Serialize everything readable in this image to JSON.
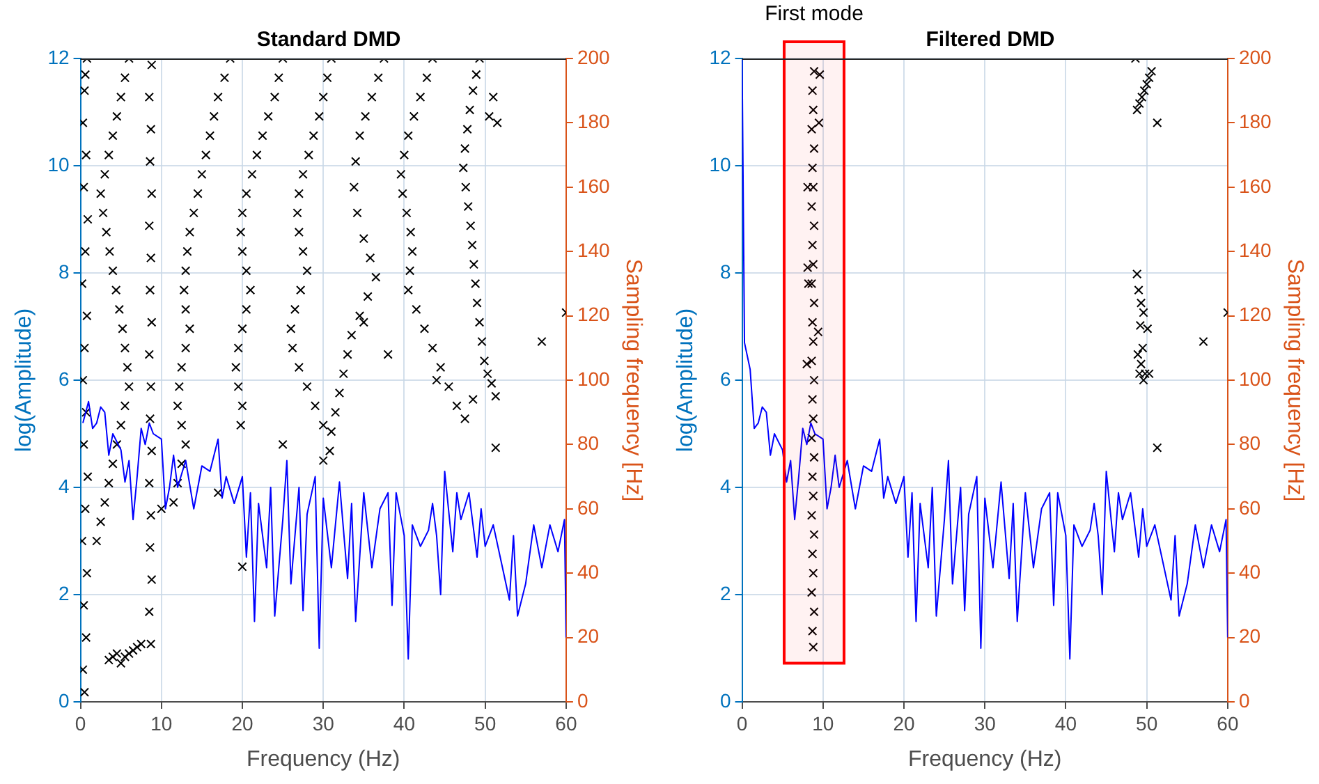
{
  "chart_data": [
    {
      "type": "line",
      "title": "Standard DMD",
      "xlabel": "Frequency (Hz)",
      "ylabel": "log(Amplitude)",
      "y2label": "Sampling frequency [Hz]",
      "xlim": [
        0,
        60
      ],
      "xticks": [
        0,
        10,
        20,
        30,
        40,
        50,
        60
      ],
      "ylim": [
        0,
        12
      ],
      "yticks": [
        0,
        2,
        4,
        6,
        8,
        10,
        12
      ],
      "y2lim": [
        0,
        200
      ],
      "y2ticks": [
        0,
        20,
        40,
        60,
        80,
        100,
        120,
        140,
        160,
        180,
        200
      ],
      "grid": true,
      "series": [
        {
          "color": "#0000ff",
          "x": [
            0.3,
            1,
            1.5,
            2,
            2.5,
            3,
            3.5,
            4,
            5,
            5.5,
            6,
            6.5,
            7,
            7.5,
            8,
            8.5,
            9,
            10,
            10.5,
            11,
            11.5,
            12,
            13,
            14,
            15,
            16,
            17,
            17.5,
            18,
            19,
            20,
            20.5,
            21,
            21.5,
            22,
            23,
            23.5,
            24,
            25,
            25.5,
            26,
            27,
            27.5,
            28,
            29,
            29.5,
            30,
            31,
            32,
            33,
            33.5,
            34,
            35,
            36,
            37,
            38,
            38.5,
            39,
            40,
            40.5,
            41,
            42,
            43,
            43.5,
            44,
            44.5,
            45,
            46,
            46.5,
            47,
            48,
            49,
            49.5,
            50,
            51,
            52,
            53,
            53.5,
            54,
            55,
            56,
            57,
            58,
            59,
            59.8,
            60
          ],
          "values": [
            5.2,
            5.6,
            5.1,
            5.2,
            5.5,
            5.4,
            4.6,
            5.0,
            4.7,
            4.1,
            4.5,
            3.4,
            4.2,
            5.1,
            4.8,
            5.2,
            5.0,
            4.9,
            3.6,
            4.0,
            4.6,
            4.0,
            4.5,
            3.6,
            4.4,
            4.3,
            4.9,
            3.8,
            4.2,
            3.7,
            4.2,
            2.7,
            3.9,
            1.5,
            3.7,
            2.5,
            4.0,
            1.6,
            3.4,
            4.5,
            2.2,
            4.0,
            1.7,
            3.5,
            4.2,
            1.0,
            3.8,
            2.5,
            4.1,
            2.3,
            3.7,
            1.5,
            3.9,
            2.5,
            3.6,
            3.9,
            1.8,
            3.9,
            3.1,
            0.8,
            3.3,
            2.9,
            3.2,
            3.7,
            3.1,
            2.0,
            4.3,
            2.8,
            3.9,
            3.4,
            3.9,
            2.7,
            3.6,
            2.9,
            3.3,
            2.6,
            1.9,
            3.1,
            1.6,
            2.2,
            3.3,
            2.5,
            3.3,
            2.8,
            3.4,
            1.2
          ]
        },
        {
          "type": "scatter",
          "axis": "y2",
          "marker": "cross",
          "color": "#000000",
          "x": [
            0.5,
            0.3,
            0.7,
            0.4,
            0.8,
            0.2,
            0.6,
            0.9,
            0.4,
            0.7,
            0.3,
            0.5,
            0.8,
            0.2,
            0.6,
            0.9,
            0.4,
            0.7,
            0.3,
            0.5,
            0.8,
            0.6,
            8.7,
            8.5,
            8.8,
            8.6,
            8.7,
            8.5,
            8.8,
            8.6,
            8.7,
            8.5,
            8.8,
            8.6,
            8.7,
            8.5,
            8.8,
            8.6,
            8.7,
            8.5,
            8.8,
            3.5,
            4,
            4.5,
            5,
            5.5,
            6,
            6.5,
            7,
            7.5,
            49.3,
            48.9,
            48.5,
            48.1,
            47.8,
            47.5,
            47.3,
            47.6,
            47.9,
            48.2,
            48.4,
            48.6,
            48.8,
            49,
            49.3,
            49.6,
            49.9,
            50.3,
            50.8,
            51.3,
            51,
            50.5,
            51.5,
            43.5,
            42.8,
            42,
            41.2,
            40.5,
            40,
            39.6,
            39.8,
            40.3,
            40.8,
            41,
            40.7,
            40.5,
            41.5,
            42.5,
            43.5,
            44.5,
            45.5,
            46.5,
            47.5,
            48.5,
            37.5,
            36.8,
            36,
            35.2,
            34.5,
            34,
            33.8,
            34.2,
            35,
            35.8,
            36.5,
            35.5,
            34.5,
            33.5,
            33,
            32.5,
            32,
            31.5,
            31,
            30.8,
            31,
            30.5,
            30,
            29.5,
            28.8,
            28.2,
            27.5,
            27,
            26.8,
            27,
            27.5,
            28,
            27.2,
            26.5,
            26,
            26.2,
            27,
            28,
            29,
            30,
            25,
            24.5,
            24,
            23.2,
            22.5,
            21.8,
            21.2,
            20.5,
            20,
            19.8,
            20,
            20.5,
            21,
            20.5,
            20,
            19.5,
            19.2,
            19.5,
            20,
            19.8,
            18.5,
            17.8,
            17,
            16.5,
            16,
            15.5,
            15,
            14.5,
            14,
            13.5,
            13.2,
            13,
            12.8,
            13,
            13.5,
            13,
            12.5,
            12.2,
            12,
            12.5,
            13,
            12.5,
            12,
            11.5,
            6,
            5.5,
            5,
            4.5,
            4,
            3.5,
            3,
            2.5,
            2.8,
            3.2,
            3.6,
            4,
            4.4,
            4.8,
            5.2,
            5.5,
            5.8,
            6,
            5.5,
            5,
            4.5,
            4,
            3.5,
            3,
            2.5,
            2,
            57,
            60,
            51.3,
            44,
            38,
            35,
            30,
            25,
            20,
            17,
            10
          ],
          "values": [
            3,
            10,
            20,
            30,
            40,
            50,
            60,
            70,
            80,
            90,
            100,
            110,
            120,
            130,
            140,
            150,
            160,
            170,
            180,
            190,
            200,
            195,
            18,
            28,
            38,
            48,
            58,
            68,
            78,
            88,
            98,
            108,
            118,
            128,
            138,
            148,
            158,
            168,
            178,
            188,
            198,
            13,
            14,
            15,
            12,
            14,
            15,
            16,
            17,
            18,
            200,
            195,
            190,
            184,
            178,
            172,
            166,
            160,
            154,
            148,
            142,
            136,
            130,
            124,
            118,
            112,
            106,
            102,
            99,
            95,
            188,
            182,
            180,
            200,
            194,
            188,
            182,
            176,
            170,
            164,
            158,
            152,
            146,
            140,
            134,
            128,
            122,
            116,
            110,
            104,
            98,
            92,
            88,
            94,
            200,
            194,
            188,
            182,
            176,
            168,
            160,
            152,
            144,
            138,
            132,
            126,
            120,
            114,
            108,
            102,
            96,
            90,
            84,
            78,
            200,
            194,
            188,
            182,
            176,
            170,
            164,
            158,
            152,
            146,
            140,
            134,
            128,
            122,
            116,
            110,
            104,
            98,
            92,
            86,
            200,
            194,
            188,
            182,
            176,
            170,
            164,
            158,
            152,
            146,
            140,
            134,
            128,
            122,
            116,
            110,
            104,
            98,
            92,
            86,
            200,
            194,
            188,
            182,
            176,
            170,
            164,
            158,
            152,
            146,
            140,
            134,
            128,
            122,
            116,
            110,
            104,
            98,
            92,
            86,
            80,
            74,
            68,
            62,
            200,
            194,
            188,
            182,
            176,
            170,
            164,
            158,
            152,
            146,
            140,
            134,
            128,
            122,
            116,
            110,
            104,
            98,
            92,
            86,
            80,
            74,
            68,
            62,
            56,
            50,
            112,
            121,
            79,
            100,
            108,
            118,
            75,
            80,
            42,
            65,
            60
          ]
        }
      ]
    },
    {
      "type": "line",
      "title": "Filtered DMD",
      "xlabel": "Frequency (Hz)",
      "ylabel": "log(Amplitude)",
      "y2label": "Sampling frequency [Hz]",
      "xlim": [
        0,
        60
      ],
      "xticks": [
        0,
        10,
        20,
        30,
        40,
        50,
        60
      ],
      "ylim": [
        0,
        12
      ],
      "yticks": [
        0,
        2,
        4,
        6,
        8,
        10,
        12
      ],
      "y2lim": [
        0,
        200
      ],
      "y2ticks": [
        0,
        20,
        40,
        60,
        80,
        100,
        120,
        140,
        160,
        180,
        200
      ],
      "grid": true,
      "bands": [
        {
          "axis": "x",
          "from": 5.2,
          "to": 12.6,
          "label": "First mode",
          "color": "#ff0000"
        }
      ],
      "series": [
        {
          "color": "#0000ff",
          "x": [
            0,
            0.3,
            1,
            1.5,
            2,
            2.5,
            3,
            3.5,
            4,
            5,
            5.5,
            6,
            6.5,
            7,
            7.5,
            8,
            8.5,
            9,
            10,
            10.5,
            11,
            11.5,
            12,
            13,
            14,
            15,
            16,
            17,
            17.5,
            18,
            19,
            20,
            20.5,
            21,
            21.5,
            22,
            23,
            23.5,
            24,
            25,
            25.5,
            26,
            27,
            27.5,
            28,
            29,
            29.5,
            30,
            31,
            32,
            33,
            33.5,
            34,
            35,
            36,
            37,
            38,
            38.5,
            39,
            40,
            40.5,
            41,
            42,
            43,
            43.5,
            44,
            44.5,
            45,
            46,
            46.5,
            47,
            48,
            49,
            49.5,
            50,
            51,
            52,
            53,
            53.5,
            54,
            55,
            56,
            57,
            58,
            59,
            59.8,
            60
          ],
          "values": [
            12,
            6.7,
            6.2,
            5.1,
            5.2,
            5.5,
            5.4,
            4.6,
            5.0,
            4.7,
            4.1,
            4.5,
            3.4,
            4.2,
            5.1,
            4.8,
            5.2,
            5.0,
            4.9,
            3.6,
            4.0,
            4.6,
            4.0,
            4.5,
            3.6,
            4.4,
            4.3,
            4.9,
            3.8,
            4.2,
            3.7,
            4.2,
            2.7,
            3.9,
            1.5,
            3.7,
            2.5,
            4.0,
            1.6,
            3.4,
            4.5,
            2.2,
            4.0,
            1.7,
            3.5,
            4.2,
            1.0,
            3.8,
            2.5,
            4.1,
            2.3,
            3.7,
            1.5,
            3.9,
            2.5,
            3.6,
            3.9,
            1.8,
            3.9,
            3.1,
            0.8,
            3.3,
            2.9,
            3.2,
            3.7,
            3.1,
            2.0,
            4.3,
            2.8,
            3.9,
            3.4,
            3.9,
            2.7,
            3.6,
            2.9,
            3.3,
            2.6,
            1.9,
            3.1,
            1.6,
            2.2,
            3.3,
            2.5,
            3.3,
            2.8,
            3.4,
            1.2
          ]
        },
        {
          "type": "scatter",
          "axis": "y2",
          "marker": "cross",
          "color": "#000000",
          "x": [
            8.8,
            8.7,
            8.9,
            8.6,
            8.8,
            8.7,
            8.9,
            8.6,
            8.8,
            8.7,
            8.9,
            8.6,
            8.8,
            8.7,
            8.9,
            8.6,
            8.8,
            8.7,
            8.9,
            8.6,
            8.8,
            8.7,
            8.9,
            8.6,
            8.8,
            8.7,
            8.9,
            8.6,
            8.8,
            8.7,
            8.9,
            9.6,
            9.5,
            8.1,
            8.1,
            8.2,
            8.0,
            9.4,
            48.6,
            48.8,
            49.1,
            49.4,
            49.7,
            50,
            50.3,
            50.6,
            51.3,
            48.8,
            49,
            49.3,
            49.6,
            49.2,
            50.1,
            49.5,
            48.9,
            49.3,
            49.8,
            49.1,
            49.6,
            50.3,
            51.3,
            57,
            60
          ],
          "values": [
            17,
            22,
            28,
            34,
            40,
            46,
            52,
            58,
            64,
            70,
            76,
            82,
            88,
            94,
            100,
            106,
            112,
            118,
            124,
            130,
            136,
            142,
            148,
            154,
            160,
            166,
            172,
            178,
            184,
            190,
            196,
            195,
            180,
            160,
            135,
            130,
            105,
            115,
            200,
            184,
            186,
            188,
            190,
            192,
            194,
            196,
            180,
            133,
            128,
            124,
            121,
            117,
            116,
            110,
            108,
            105,
            102,
            102,
            100,
            102,
            79,
            112,
            121
          ]
        }
      ]
    }
  ]
}
